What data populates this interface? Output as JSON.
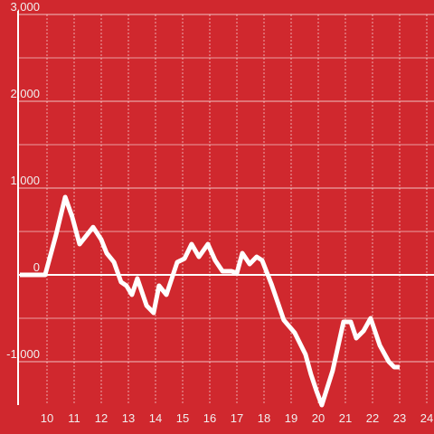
{
  "chart_data": {
    "type": "line",
    "x": [
      9,
      9.93,
      10.33,
      10.67,
      10.93,
      11.2,
      11.7,
      12,
      12.2,
      12.47,
      12.73,
      12.93,
      13.13,
      13.33,
      13.67,
      13.93,
      14.13,
      14.4,
      14.8,
      15.07,
      15.33,
      15.6,
      15.93,
      16.2,
      16.47,
      16.8,
      17,
      17.2,
      17.47,
      17.73,
      17.93,
      18.27,
      18.73,
      19.13,
      19.53,
      19.73,
      19.93,
      20.13,
      20.53,
      20.93,
      21.2,
      21.4,
      21.67,
      21.93,
      22.27,
      22.6,
      22.8,
      23
    ],
    "series": [
      {
        "color": "#ffffff",
        "values": [
          0,
          0,
          458,
          896,
          667,
          354,
          550,
          406,
          250,
          146,
          -83,
          -125,
          -229,
          -42,
          -354,
          -438,
          -125,
          -229,
          146,
          188,
          354,
          208,
          354,
          167,
          42,
          42,
          21,
          250,
          125,
          208,
          167,
          -104,
          -521,
          -667,
          -917,
          -1146,
          -1333,
          -1500,
          -1104,
          -542,
          -542,
          -729,
          -646,
          -500,
          -813,
          -1000,
          -1063,
          -1063
        ]
      }
    ],
    "xlim": [
      9,
      24.6
    ],
    "xticks": [
      10,
      11,
      12,
      13,
      14,
      15,
      16,
      17,
      18,
      19,
      20,
      21,
      22,
      23,
      24
    ],
    "ylim": [
      -1500,
      3000
    ],
    "yticks": [
      {
        "value": -1000,
        "label": "-1,000"
      },
      0,
      {
        "value": 1000,
        "label": "1,000"
      },
      {
        "value": 2000,
        "label": "2,000"
      },
      {
        "value": 3000,
        "label": "3,000"
      }
    ],
    "yminor": [
      -500,
      500,
      1500,
      2500
    ],
    "grid": true
  }
}
